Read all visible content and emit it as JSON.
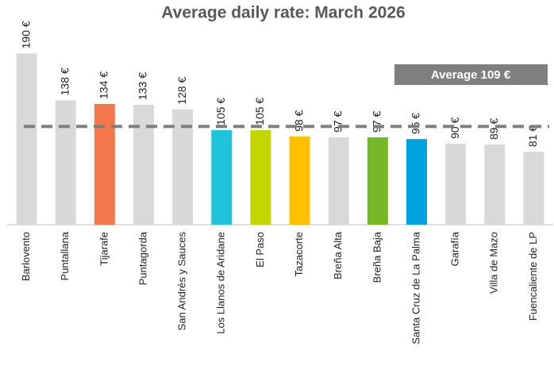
{
  "chart_data": {
    "type": "bar",
    "title": "Average daily rate:  March 2026",
    "categories": [
      "Barlovento",
      "Puntallana",
      "Tijarafe",
      "Puntagorda",
      "San Andrés y Sauces",
      "Los Llanos de Aridane",
      "El Paso",
      "Tazacorte",
      "Breña Alta",
      "Breña Baja",
      "Santa Cruz de La Palma",
      "Garafía",
      "Villa de Mazo",
      "Fuencaliente de LP"
    ],
    "values": [
      190,
      138,
      134,
      133,
      128,
      105,
      105,
      98,
      97,
      97,
      95,
      90,
      89,
      81
    ],
    "value_labels": [
      "190 €",
      "138 €",
      "134 €",
      "133 €",
      "128 €",
      "105 €",
      "105 €",
      "98 €",
      "97 €",
      "97 €",
      "95 €",
      "90 €",
      "89 €",
      "81 €"
    ],
    "colors": [
      "#d9d9d9",
      "#d9d9d9",
      "#f4784c",
      "#d9d9d9",
      "#d9d9d9",
      "#1ec3dc",
      "#c3d600",
      "#ffc000",
      "#d9d9d9",
      "#76b82a",
      "#00a3e0",
      "#d9d9d9",
      "#d9d9d9",
      "#d9d9d9"
    ],
    "average": {
      "value": 109,
      "label": "Average 109 €"
    },
    "ylim": [
      0,
      200
    ]
  }
}
